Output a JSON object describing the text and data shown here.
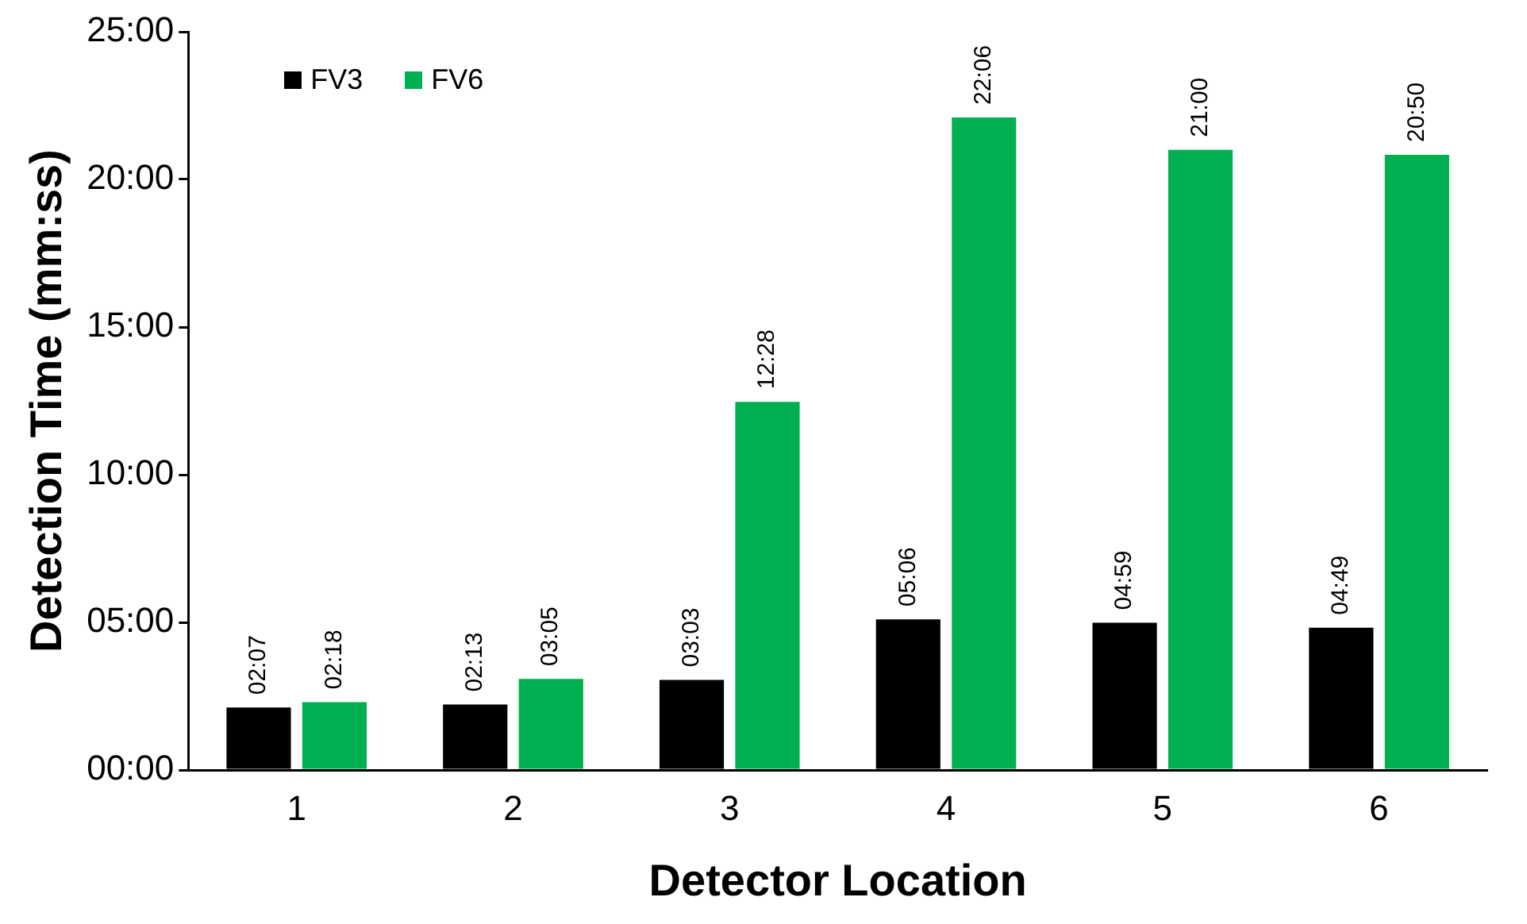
{
  "chart_data": {
    "type": "bar",
    "xlabel": "Detector Location",
    "ylabel": "Detection Time (mm:ss)",
    "categories": [
      "1",
      "2",
      "3",
      "4",
      "5",
      "6"
    ],
    "series": [
      {
        "name": "FV3",
        "color": "#000000",
        "values": [
          127,
          133,
          183,
          306,
          299,
          289
        ],
        "value_labels": [
          "02:07",
          "02:13",
          "03:03",
          "05:06",
          "04:59",
          "04:49"
        ]
      },
      {
        "name": "FV6",
        "color": "#00b050",
        "values": [
          138,
          185,
          748,
          1326,
          1260,
          1250
        ],
        "value_labels": [
          "02:18",
          "03:05",
          "12:28",
          "22:06",
          "21:00",
          "20:50"
        ]
      }
    ],
    "ylim": [
      0,
      1500
    ],
    "yticks": [
      {
        "value": 0,
        "label": "00:00"
      },
      {
        "value": 300,
        "label": "05:00"
      },
      {
        "value": 600,
        "label": "10:00"
      },
      {
        "value": 900,
        "label": "15:00"
      },
      {
        "value": 1200,
        "label": "20:00"
      },
      {
        "value": 1500,
        "label": "25:00"
      }
    ],
    "grid": false,
    "legend": "top left"
  }
}
